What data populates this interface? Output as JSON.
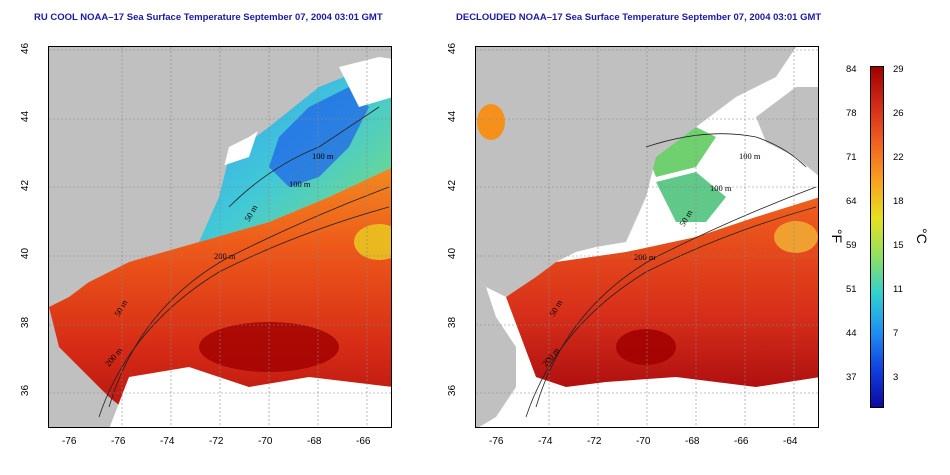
{
  "panels": [
    {
      "title": "RU COOL NOAA–17 Sea Surface Temperature September 07, 2004 03:01 GMT"
    },
    {
      "title": "DECLOUDED NOAA–17 Sea Surface Temperature September 07, 2004 03:01 GMT"
    }
  ],
  "lat_ticks": [
    "36",
    "38",
    "40",
    "42",
    "44",
    "46"
  ],
  "lon_ticks": [
    "-76",
    "-74",
    "-72",
    "-70",
    "-68",
    "-66",
    "-64"
  ],
  "isobaths": {
    "a": "100 m",
    "b": "100 m",
    "c": "50 m",
    "d": "200 m",
    "e": "50 m",
    "f": "200 m"
  },
  "colorbar": {
    "fahrenheit_label": "°F",
    "celsius_label": "°C",
    "fahrenheit_ticks": [
      "84",
      "78",
      "71",
      "64",
      "59",
      "51",
      "44",
      "37"
    ],
    "celsius_ticks": [
      "29",
      "26",
      "22",
      "18",
      "15",
      "11",
      "7",
      "3"
    ],
    "colors": [
      "#a00000",
      "#d42a18",
      "#f06020",
      "#f8a020",
      "#e8e020",
      "#90e060",
      "#30d0d0",
      "#2090f0",
      "#1040e0",
      "#0a0aa0"
    ]
  },
  "map_colors": {
    "land": "#c0c0c0",
    "cloud": "#ffffff",
    "coast": "#000000"
  }
}
